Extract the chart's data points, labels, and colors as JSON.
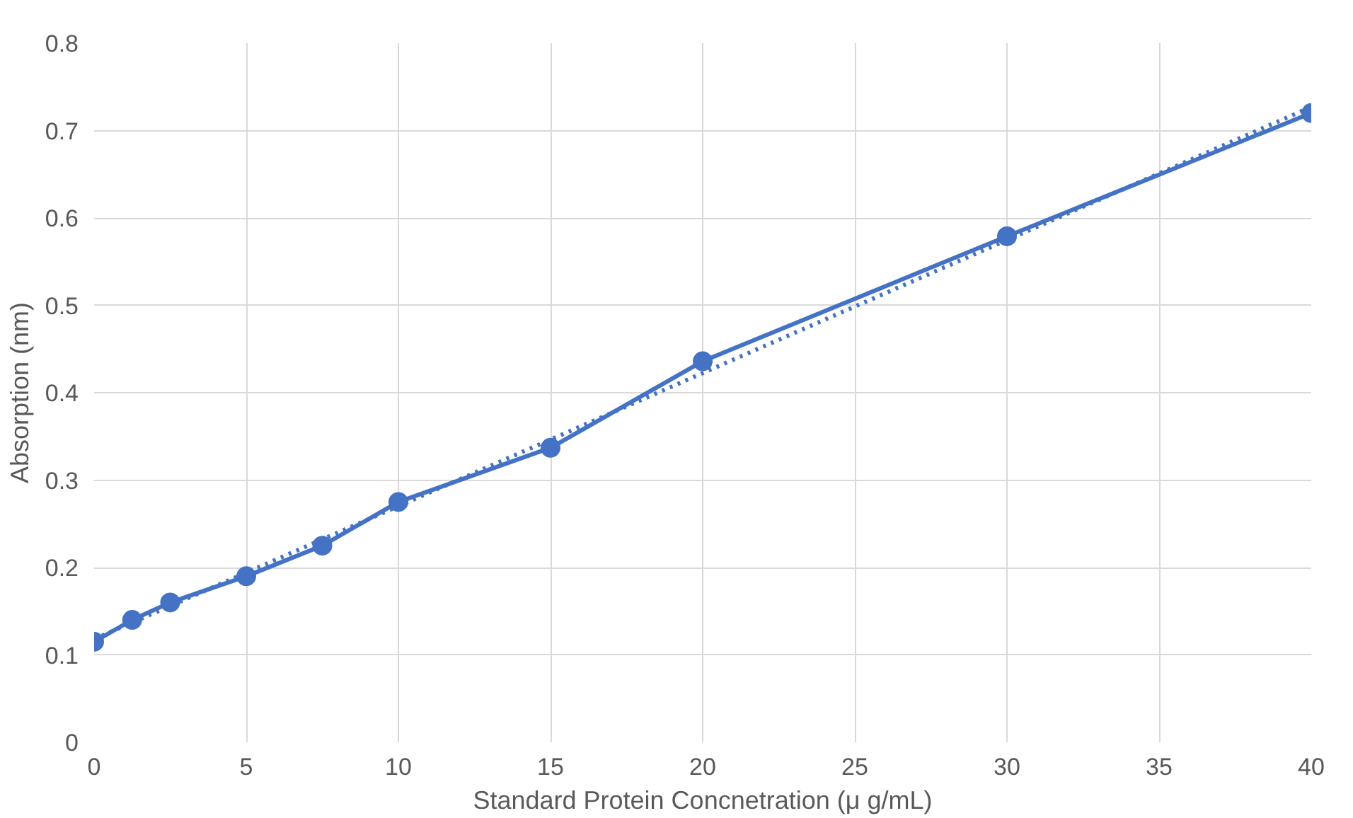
{
  "chart_data": {
    "type": "line",
    "xlabel": "Standard Protein Concnetration (μ g/mL)",
    "ylabel": "Absorption (nm)",
    "xlim": [
      0,
      40
    ],
    "xticks": [
      0,
      5,
      10,
      15,
      20,
      25,
      30,
      35,
      40
    ],
    "ylim": [
      0,
      0.8
    ],
    "yticks": [
      0,
      0.1,
      0.2,
      0.3,
      0.4,
      0.5,
      0.6,
      0.7,
      0.8
    ],
    "grid": true,
    "series": [
      {
        "color": "#4472c4",
        "marker": "circle",
        "line_style": "solid",
        "x": [
          0,
          1.25,
          2.5,
          5,
          7.5,
          10,
          15,
          20,
          30,
          40
        ],
        "values": [
          0.115,
          0.14,
          0.16,
          0.19,
          0.225,
          0.275,
          0.337,
          0.436,
          0.579,
          0.72
        ]
      },
      {
        "color": "#4472c4",
        "marker": "none",
        "line_style": "dotted",
        "x": [
          0,
          40
        ],
        "values": [
          0.118,
          0.727
        ]
      }
    ]
  }
}
